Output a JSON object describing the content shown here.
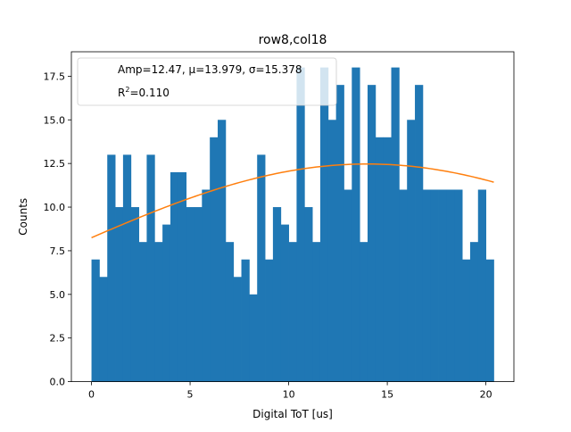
{
  "colors": {
    "bar": "#1f77b4",
    "fit": "#ff7f0e",
    "axis": "#000000",
    "background": "#ffffff"
  },
  "chart_data": {
    "type": "bar",
    "title": "row8,col18",
    "xlabel": "Digital ToT [us]",
    "ylabel": "Counts",
    "xlim": [
      -1.02,
      21.42
    ],
    "ylim": [
      0,
      18.9
    ],
    "xticks": [
      0,
      5,
      10,
      15,
      20
    ],
    "xtick_labels": [
      "0",
      "5",
      "10",
      "15",
      "20"
    ],
    "yticks": [
      0,
      2.5,
      5,
      7.5,
      10,
      12.5,
      15,
      17.5
    ],
    "ytick_labels": [
      "0.0",
      "2.5",
      "5.0",
      "7.5",
      "10.0",
      "12.5",
      "15.0",
      "17.5"
    ],
    "bin_start": 0,
    "bin_width": 0.4,
    "values": [
      7,
      6,
      13,
      10,
      13,
      10,
      8,
      13,
      8,
      9,
      12,
      12,
      10,
      10,
      11,
      14,
      15,
      8,
      6,
      7,
      5,
      13,
      7,
      10,
      9,
      8,
      18,
      10,
      8,
      18,
      15,
      17,
      11,
      18,
      8,
      17,
      14,
      14,
      18,
      11,
      15,
      17,
      11,
      11,
      11,
      11,
      11,
      7,
      8,
      11,
      7
    ],
    "fit": {
      "model": "gaussian",
      "amp": 12.47,
      "mu": 13.979,
      "sigma": 15.378,
      "r2": 0.11,
      "x_range": [
        0,
        20.4
      ]
    },
    "legend": {
      "location": "top-left",
      "line1": "Amp=12.47, μ=13.979, σ=15.378",
      "line2_prefix": "R",
      "line2_sup": "2",
      "line2_suffix": "=0.110"
    },
    "grid": false
  }
}
